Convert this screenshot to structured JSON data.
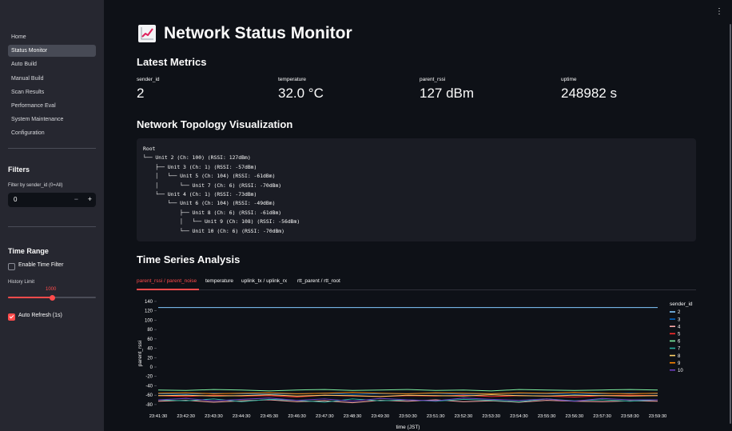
{
  "sidebar": {
    "nav": [
      {
        "label": "Home",
        "active": false
      },
      {
        "label": "Status Monitor",
        "active": true
      },
      {
        "label": "Auto Build",
        "active": false
      },
      {
        "label": "Manual Build",
        "active": false
      },
      {
        "label": "Scan Results",
        "active": false
      },
      {
        "label": "Performance Eval",
        "active": false
      },
      {
        "label": "System Maintenance",
        "active": false
      },
      {
        "label": "Configuration",
        "active": false
      }
    ],
    "filters_title": "Filters",
    "filter_label": "Filter by sender_id (0=All)",
    "filter_value": "0",
    "minus": "−",
    "plus": "+",
    "time_range_title": "Time Range",
    "enable_time_filter": {
      "label": "Enable Time Filter",
      "checked": false
    },
    "history_limit": {
      "label": "History Limit",
      "value": 1000,
      "min": 0,
      "max": 2000,
      "display": "1000"
    },
    "auto_refresh": {
      "label": "Auto Refresh (1s)",
      "checked": true
    }
  },
  "main": {
    "menu_icon": "⋮",
    "title_icon": "chart-increasing-icon",
    "title": "Network Status Monitor",
    "latest_metrics_title": "Latest Metrics",
    "metrics": [
      {
        "label": "sender_id",
        "value": "2"
      },
      {
        "label": "temperature",
        "value": "32.0 °C"
      },
      {
        "label": "parent_rssi",
        "value": "127 dBm"
      },
      {
        "label": "uptime",
        "value": "248982 s"
      }
    ],
    "topology_title": "Network Topology Visualization",
    "topology_text": "Root\n└── Unit 2 (Ch: 100) (RSSI: 127dBm)\n    ├── Unit 3 (Ch: 1) (RSSI: -57dBm)\n    │   └── Unit 5 (Ch: 104) (RSSI: -61dBm)\n    │       └── Unit 7 (Ch: 6) (RSSI: -70dBm)\n    └── Unit 4 (Ch: 1) (RSSI: -73dBm)\n        └── Unit 6 (Ch: 104) (RSSI: -49dBm)\n            ├── Unit 8 (Ch: 6) (RSSI: -61dBm)\n            │   └── Unit 9 (Ch: 108) (RSSI: -56dBm)\n            └── Unit 10 (Ch: 6) (RSSI: -70dBm)",
    "time_series_title": "Time Series Analysis",
    "tabs": [
      {
        "label": "parent_rssi / parent_noise",
        "active": true
      },
      {
        "label": "temperature",
        "active": false
      },
      {
        "label": "uplink_tx / uplink_rx",
        "active": false
      },
      {
        "label": "rtt_parent / rtt_root",
        "active": false
      }
    ]
  },
  "chart_data": {
    "type": "line",
    "xlabel": "time (JST)",
    "ylabel": "parent_rssi",
    "ylim": [
      -87,
      145
    ],
    "yticks": [
      140,
      120,
      100,
      80,
      60,
      40,
      20,
      0,
      -20,
      -40,
      -60,
      -80
    ],
    "x": [
      "23:41:30",
      "23:42:30",
      "23:43:30",
      "23:44:30",
      "23:45:30",
      "23:46:30",
      "23:47:30",
      "23:48:30",
      "23:49:30",
      "23:50:30",
      "23:51:30",
      "23:52:30",
      "23:53:30",
      "23:54:30",
      "23:55:30",
      "23:56:30",
      "23:57:30",
      "23:58:30",
      "23:59:30"
    ],
    "legend_title": "sender_id",
    "legend_position": "right",
    "series": [
      {
        "name": "2",
        "color": "#83c9ff",
        "values": [
          127,
          127,
          127,
          127,
          127,
          127,
          127,
          127,
          127,
          127,
          127,
          127,
          127,
          127,
          127,
          127,
          127,
          127,
          127
        ]
      },
      {
        "name": "3",
        "color": "#0068c9",
        "values": [
          -57,
          -58,
          -56,
          -57,
          -58,
          -57,
          -56,
          -58,
          -57,
          -57,
          -56,
          -58,
          -57,
          -56,
          -57,
          -58,
          -57,
          -56,
          -57
        ]
      },
      {
        "name": "4",
        "color": "#ffabab",
        "values": [
          -73,
          -71,
          -75,
          -72,
          -70,
          -74,
          -72,
          -76,
          -71,
          -73,
          -70,
          -74,
          -72,
          -75,
          -71,
          -73,
          -74,
          -72,
          -73
        ]
      },
      {
        "name": "5",
        "color": "#ff2b2b",
        "values": [
          -61,
          -63,
          -60,
          -62,
          -61,
          -64,
          -60,
          -62,
          -63,
          -61,
          -62,
          -60,
          -63,
          -61,
          -62,
          -64,
          -61,
          -60,
          -61
        ]
      },
      {
        "name": "6",
        "color": "#7defa1",
        "values": [
          -49,
          -50,
          -48,
          -49,
          -51,
          -49,
          -48,
          -50,
          -49,
          -48,
          -50,
          -49,
          -51,
          -48,
          -49,
          -50,
          -49,
          -48,
          -49
        ]
      },
      {
        "name": "7",
        "color": "#29b09d",
        "values": [
          -70,
          -72,
          -68,
          -74,
          -69,
          -71,
          -75,
          -68,
          -72,
          -70,
          -73,
          -69,
          -71,
          -74,
          -68,
          -72,
          -70,
          -73,
          -70
        ]
      },
      {
        "name": "8",
        "color": "#ffd16a",
        "values": [
          -61,
          -60,
          -62,
          -61,
          -59,
          -62,
          -60,
          -61,
          -63,
          -60,
          -61,
          -62,
          -59,
          -61,
          -62,
          -60,
          -61,
          -62,
          -61
        ]
      },
      {
        "name": "9",
        "color": "#ff8700",
        "values": [
          -56,
          -55,
          -57,
          -56,
          -55,
          -57,
          -56,
          -54,
          -56,
          -57,
          -55,
          -56,
          -57,
          -55,
          -56,
          -54,
          -56,
          -57,
          -56
        ]
      },
      {
        "name": "10",
        "color": "#6d3fc0",
        "values": [
          -70,
          -67,
          -72,
          -69,
          -66,
          -71,
          -68,
          -73,
          -67,
          -70,
          -72,
          -66,
          -69,
          -71,
          -68,
          -73,
          -67,
          -70,
          -70
        ]
      }
    ]
  }
}
